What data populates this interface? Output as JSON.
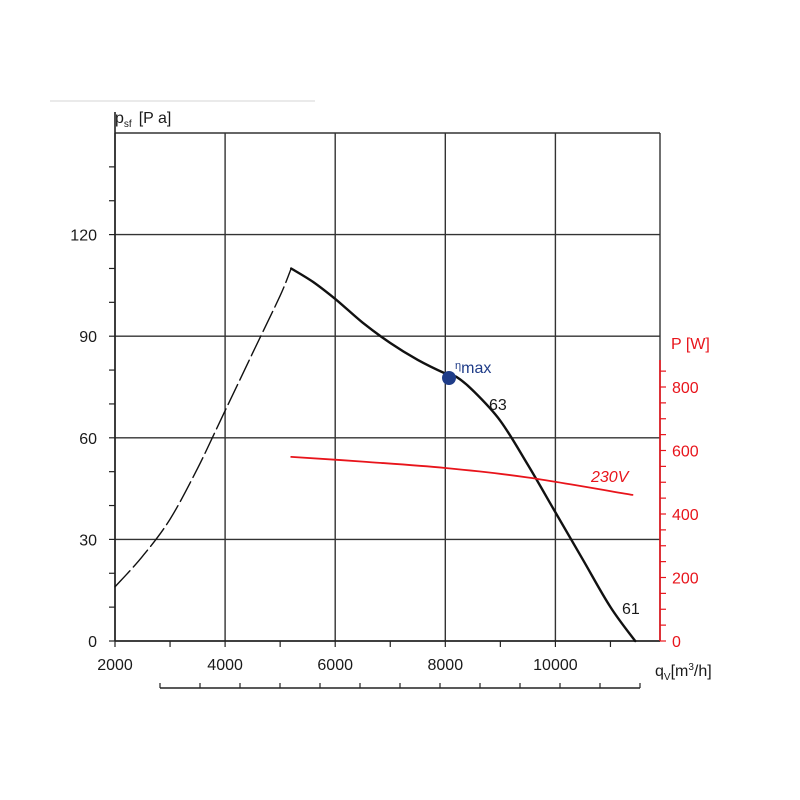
{
  "chart_data": {
    "type": "line",
    "x_axis": {
      "label_symbol": "q",
      "label_sub": "V",
      "label_unit_pre": "[m",
      "label_unit_sup": "3",
      "label_unit_post": "/h]",
      "range": [
        2000,
        11500
      ],
      "ticks": [
        "2000",
        "4000",
        "6000",
        "8000",
        "10000"
      ],
      "tick_values": [
        2000,
        4000,
        6000,
        8000,
        10000
      ]
    },
    "y_axis_left": {
      "label_symbol": "p",
      "label_sub": "sf",
      "label_unit": "[P a]",
      "range": [
        0,
        140
      ],
      "ticks": [
        "0",
        "30",
        "60",
        "90",
        "120"
      ],
      "tick_values": [
        0,
        30,
        60,
        90,
        120
      ]
    },
    "y_axis_right": {
      "label": "P  [W]",
      "color": "#e8141b",
      "range": [
        0,
        1000
      ],
      "ticks": [
        "0",
        "200",
        "400",
        "600",
        "800"
      ],
      "tick_values": [
        0,
        200,
        400,
        600,
        800
      ]
    },
    "grid": true,
    "series": [
      {
        "label_start": "63",
        "label_end": "61",
        "axis": "left",
        "style": "solid",
        "color": "#111111",
        "x": [
          5200,
          5600,
          6000,
          6500,
          7000,
          7500,
          8000,
          8200,
          8500,
          9000,
          9500,
          10000,
          10500,
          11000,
          11450
        ],
        "y": [
          110,
          106,
          101,
          94,
          88,
          83,
          79,
          78,
          74,
          65,
          52,
          38,
          24,
          10,
          0
        ]
      },
      {
        "axis": "left",
        "style": "dashed",
        "color": "#111111",
        "x": [
          2000,
          2500,
          3000,
          3500,
          4000,
          4500,
          5000,
          5200
        ],
        "y": [
          16,
          25,
          36,
          51,
          68,
          85,
          102,
          110
        ]
      },
      {
        "name": "230V",
        "axis": "right",
        "style": "solid",
        "color": "#e8141b",
        "x": [
          5200,
          6500,
          8000,
          9500,
          11400
        ],
        "y": [
          580,
          565,
          545,
          515,
          460
        ]
      }
    ],
    "annotations": {
      "eta_symbol": "η",
      "eta_text": "max",
      "eta_point": {
        "x": 8150,
        "y": 78,
        "color": "#1f3c88"
      }
    }
  }
}
